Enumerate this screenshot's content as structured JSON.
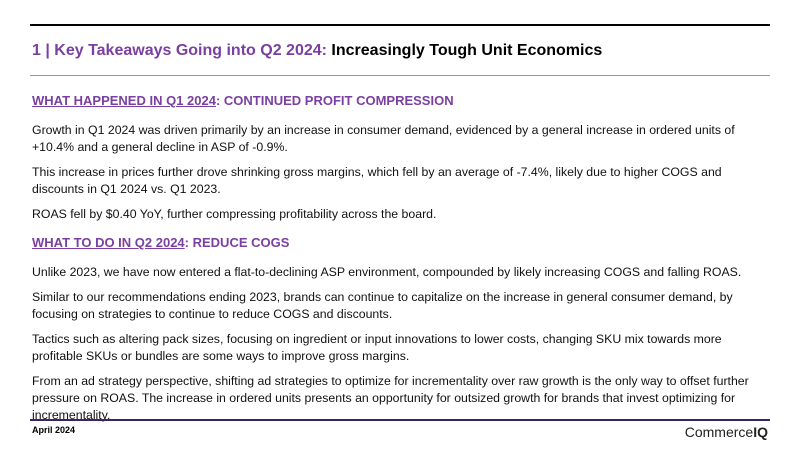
{
  "header": {
    "title_prefix": "1 | Key Takeaways Going into Q2 2024:",
    "title_main": "Increasingly Tough Unit Economics"
  },
  "sections": [
    {
      "heading_underlined": "WHAT HAPPENED IN Q1 2024",
      "heading_rest": ": CONTINUED PROFIT COMPRESSION",
      "paragraphs": [
        "Growth in Q1 2024 was driven primarily by an increase in consumer demand, evidenced by a general increase in ordered units of +10.4% and a general decline in ASP of -0.9%.",
        "This increase in prices further drove shrinking gross margins, which fell by an average of -7.4%, likely due to higher COGS and discounts in Q1 2024 vs. Q1 2023.",
        "ROAS fell by $0.40 YoY, further compressing profitability across the board."
      ]
    },
    {
      "heading_underlined": "WHAT TO DO IN Q2 2024",
      "heading_rest": ": REDUCE COGS",
      "paragraphs": [
        "Unlike 2023, we have now entered a flat-to-declining ASP environment, compounded by likely increasing COGS and falling ROAS.",
        "Similar to our recommendations ending 2023, brands can continue to capitalize on the increase in general consumer demand, by focusing on strategies to continue to reduce COGS and discounts.",
        "Tactics such as altering pack sizes, focusing on ingredient or input innovations to lower costs, changing SKU mix towards more profitable SKUs or bundles are some ways to improve gross margins.",
        "From an ad strategy perspective, shifting ad strategies to optimize for incrementality over raw growth is the only way to offset further pressure on ROAS. The increase in ordered units presents an opportunity for outsized growth for brands that invest optimizing for incrementality."
      ]
    }
  ],
  "footer": {
    "date": "April 2024",
    "logo_text": "Commerce",
    "logo_bold": "IQ"
  }
}
